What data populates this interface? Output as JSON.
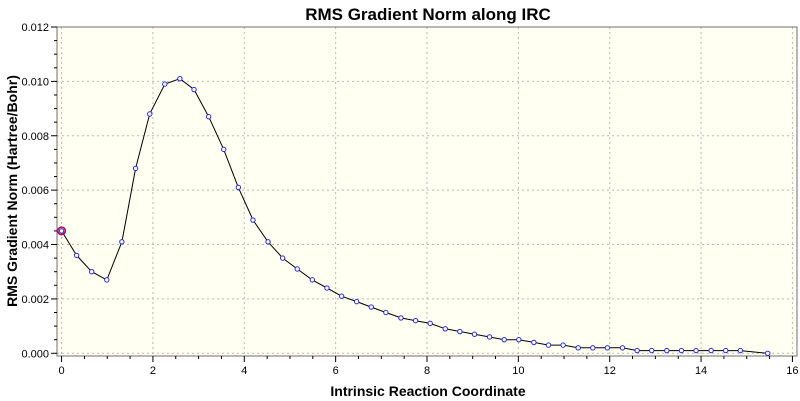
{
  "chart_data": {
    "type": "line",
    "title": "RMS Gradient Norm along IRC",
    "xlabel": "Intrinsic Reaction Coordinate",
    "ylabel": "RMS Gradient Norm (Hartree/Bohr)",
    "xlim": [
      -0.1,
      16.1
    ],
    "ylim": [
      -0.0001,
      0.012
    ],
    "xticks": [
      0,
      2,
      4,
      6,
      8,
      10,
      12,
      14,
      16
    ],
    "xtick_labels": [
      "0",
      "2",
      "4",
      "6",
      "8",
      "10",
      "12",
      "14",
      "16"
    ],
    "yticks": [
      0.0,
      0.002,
      0.004,
      0.006,
      0.008,
      0.01,
      0.012
    ],
    "ytick_labels": [
      "0.000",
      "0.002",
      "0.004",
      "0.006",
      "0.008",
      "0.010",
      "0.012"
    ],
    "grid": true,
    "legend": "none",
    "colors": {
      "plot_background": "#fffff2",
      "line": "#000000",
      "marker": "#2a2ad6",
      "highlight_marker": "#b8005a",
      "grid": "#b9b9b9"
    },
    "series": [
      {
        "x": [
          0.0,
          0.33,
          0.66,
          0.99,
          1.32,
          1.62,
          1.93,
          2.26,
          2.59,
          2.9,
          3.22,
          3.55,
          3.87,
          4.19,
          4.52,
          4.84,
          5.16,
          5.49,
          5.81,
          6.13,
          6.46,
          6.78,
          7.1,
          7.43,
          7.75,
          8.07,
          8.4,
          8.72,
          9.04,
          9.37,
          9.69,
          10.01,
          10.34,
          10.66,
          10.98,
          11.31,
          11.63,
          11.95,
          12.28,
          12.6,
          12.92,
          13.25,
          13.57,
          13.89,
          14.22,
          14.54,
          14.86,
          15.46
        ],
        "y": [
          0.0045,
          0.0036,
          0.003,
          0.0027,
          0.0041,
          0.0068,
          0.0088,
          0.0099,
          0.0101,
          0.0097,
          0.0087,
          0.0075,
          0.0061,
          0.0049,
          0.0041,
          0.0035,
          0.0031,
          0.0027,
          0.0024,
          0.0021,
          0.0019,
          0.0017,
          0.0015,
          0.0013,
          0.0012,
          0.0011,
          0.0009,
          0.0008,
          0.0007,
          0.0006,
          0.0005,
          0.0005,
          0.0004,
          0.0003,
          0.0003,
          0.0002,
          0.0002,
          0.0002,
          0.0002,
          0.0001,
          0.0001,
          0.0001,
          0.0001,
          0.0001,
          0.0001,
          0.0001,
          0.0001,
          0.0
        ]
      }
    ],
    "highlighted_point_index": 0
  }
}
